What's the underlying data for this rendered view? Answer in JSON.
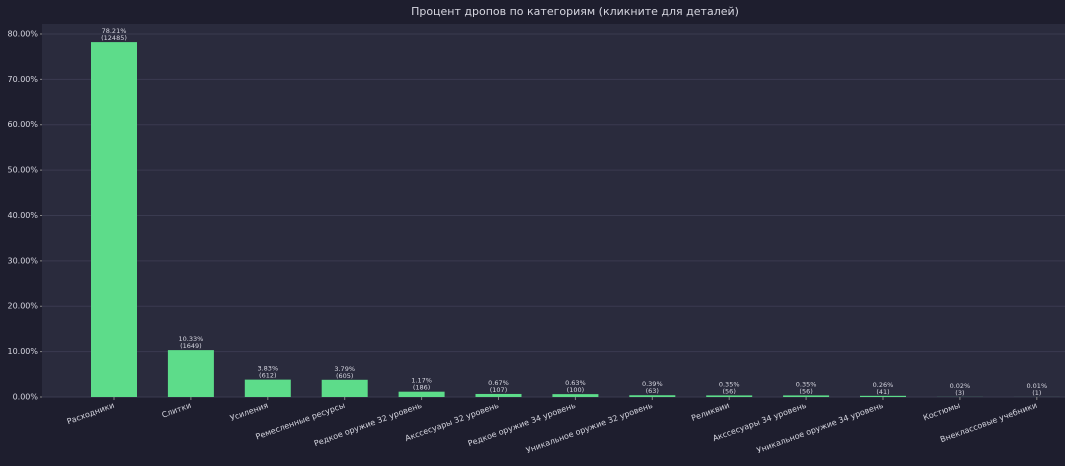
{
  "chart_data": {
    "type": "bar",
    "title": "Процент дропов по категориям  (кликните для деталей)",
    "categories": [
      "Расходники",
      "Слитки",
      "Усиления",
      "Ремесленные ресурсы",
      "Редкое оружие 32 уровень",
      "Акссесуары 32 уровень",
      "Редкое оружие 34 уровень",
      "Уникальное оружие 32 уровень",
      "Реликвии",
      "Акссесуары 34 уровень",
      "Уникальное оружие 34 уровень",
      "Костюмы",
      "Внеклассовые учебники"
    ],
    "values": [
      78.21,
      10.33,
      3.83,
      3.79,
      1.17,
      0.67,
      0.63,
      0.39,
      0.35,
      0.35,
      0.26,
      0.02,
      0.01
    ],
    "value_labels": [
      "78.21%",
      "10.33%",
      "3.83%",
      "3.79%",
      "1.17%",
      "0.67%",
      "0.63%",
      "0.39%",
      "0.35%",
      "0.35%",
      "0.26%",
      "0.02%",
      "0.01%"
    ],
    "count_labels": [
      "(12485)",
      "(1649)",
      "(612)",
      "(605)",
      "(186)",
      "(107)",
      "(100)",
      "(63)",
      "(56)",
      "(56)",
      "(41)",
      "(3)",
      "(1)"
    ],
    "color": "#5ddc8a",
    "ylim": [
      0,
      82.2
    ],
    "yticks": [
      {
        "value": 0,
        "label": "0.00%"
      },
      {
        "value": 10,
        "label": "10.00%"
      },
      {
        "value": 20,
        "label": "20.00%"
      },
      {
        "value": 30,
        "label": "30.00%"
      },
      {
        "value": 40,
        "label": "40.00%"
      },
      {
        "value": 50,
        "label": "50.00%"
      },
      {
        "value": 60,
        "label": "60.00%"
      },
      {
        "value": 70,
        "label": "70.00%"
      },
      {
        "value": 80,
        "label": "80.00%"
      }
    ],
    "grid": true
  }
}
